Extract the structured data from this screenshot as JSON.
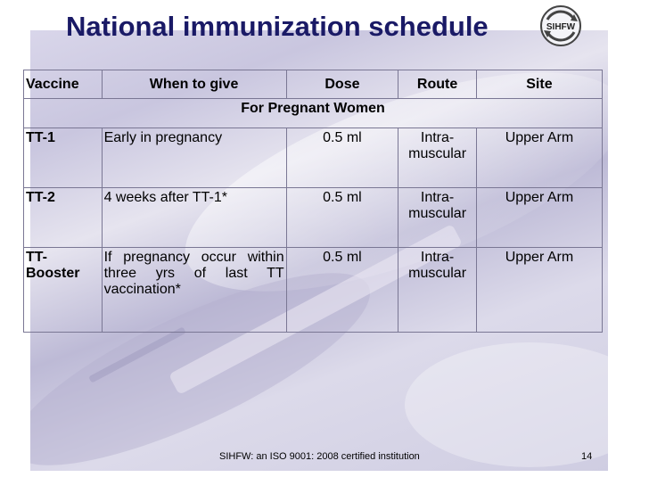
{
  "title": "National immunization schedule",
  "logo": {
    "text": "SIHFW",
    "icon": "sihfw-logo-icon"
  },
  "table": {
    "headers": [
      "Vaccine",
      "When to give",
      "Dose",
      "Route",
      "Site"
    ],
    "group_label": "For Pregnant Women",
    "rows": [
      {
        "vaccine": "TT-1",
        "when": "Early in pregnancy",
        "dose": "0.5 ml",
        "route": "Intra-muscular",
        "site": "Upper Arm"
      },
      {
        "vaccine": "TT-2",
        "when": "4 weeks after TT-1*",
        "dose": "0.5 ml",
        "route": "Intra-muscular",
        "site": "Upper Arm"
      },
      {
        "vaccine": "TT-Booster",
        "when": "If pregnancy occur within three yrs of last TT vaccination*",
        "dose": "0.5 ml",
        "route": "Intra-muscular",
        "site": "Upper Arm"
      }
    ]
  },
  "footer": "SIHFW: an ISO 9001: 2008 certified institution",
  "page_number": "14",
  "colors": {
    "title": "#1a1a66",
    "background": "#d4d1e6",
    "border": "#7a7794"
  }
}
